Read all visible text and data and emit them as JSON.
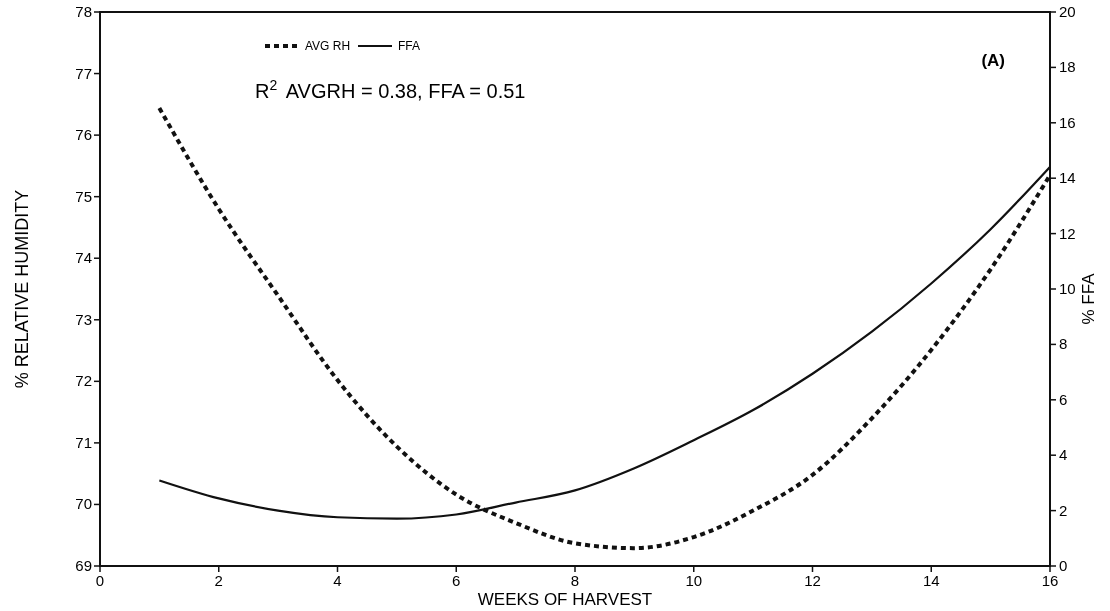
{
  "chart_data": {
    "type": "line",
    "xlabel": "WEEKS OF HARVEST",
    "ylabel": "% RELATIVE HUMIDITY",
    "y2label": "% FFA",
    "xlim": [
      0,
      16
    ],
    "xticks": [
      0,
      2,
      4,
      6,
      8,
      10,
      12,
      14,
      16
    ],
    "ylim": [
      69,
      78
    ],
    "yticks": [
      69,
      70,
      71,
      72,
      73,
      74,
      75,
      76,
      77,
      78
    ],
    "y2lim": [
      0,
      20
    ],
    "y2ticks": [
      0,
      2,
      4,
      6,
      8,
      10,
      12,
      14,
      16,
      18,
      20
    ],
    "x": [
      1,
      2,
      3,
      4,
      5,
      6,
      7,
      8,
      9,
      10,
      11,
      12,
      13,
      14,
      15,
      16
    ],
    "series": [
      {
        "name": "AVG RH",
        "color": "#111111",
        "line_style": "dotted",
        "values": [
          76.44,
          74.8,
          73.39,
          72.02,
          70.94,
          70.16,
          69.7,
          69.37,
          69.29,
          69.47,
          69.9,
          70.48,
          71.4,
          72.51,
          73.82,
          75.35
        ]
      },
      {
        "name": "FFA",
        "color": "#111111",
        "line_style": "solid",
        "axis": "y2",
        "values": [
          3.09,
          2.44,
          2.0,
          1.76,
          1.71,
          1.86,
          2.29,
          2.73,
          3.53,
          4.54,
          5.63,
          6.94,
          8.46,
          10.2,
          12.16,
          14.41
        ]
      }
    ],
    "legend": "top left",
    "grid": false,
    "annotations": [
      "R$^{2}$ AVGRH = 0.38, FFA = 0.51",
      "(A)"
    ]
  }
}
